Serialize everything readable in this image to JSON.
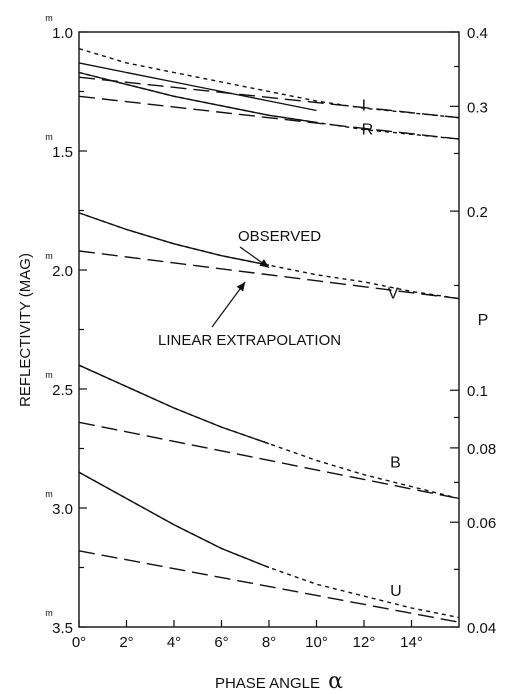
{
  "chart_data": {
    "type": "line",
    "xlabel": "PHASE ANGLE",
    "xlabel_symbol": "α",
    "ylabel": "REFLECTIVITY (MAG)",
    "y2label": "P",
    "xlim": [
      0,
      16
    ],
    "ylim": [
      3.5,
      1.0
    ],
    "x_ticks": [
      {
        "value": 0,
        "label": "0°"
      },
      {
        "value": 2,
        "label": "2°"
      },
      {
        "value": 4,
        "label": "4°"
      },
      {
        "value": 6,
        "label": "6°"
      },
      {
        "value": 8,
        "label": "8°"
      },
      {
        "value": 10,
        "label": "10°"
      },
      {
        "value": 12,
        "label": "12°"
      },
      {
        "value": 14,
        "label": "14°"
      }
    ],
    "y_ticks": [
      {
        "value": 1.0,
        "label": "1.0",
        "sup": "m"
      },
      {
        "value": 1.5,
        "label": "1.5",
        "sup": "m"
      },
      {
        "value": 2.0,
        "label": "2.0",
        "sup": "m"
      },
      {
        "value": 2.5,
        "label": "2.5",
        "sup": "m"
      },
      {
        "value": 3.0,
        "label": "3.0",
        "sup": "m"
      },
      {
        "value": 3.5,
        "label": "3.5",
        "sup": "m"
      }
    ],
    "y_minor_ticks": [
      1.25,
      1.75,
      2.25,
      2.75,
      3.25
    ],
    "y2_ticks": [
      {
        "value": 0.4,
        "label": "0.4"
      },
      {
        "value": 0.3,
        "label": "0.3"
      },
      {
        "value": 0.2,
        "label": "0.2"
      },
      {
        "value": 0.1,
        "label": "0.1"
      },
      {
        "value": 0.08,
        "label": "0.08"
      },
      {
        "value": 0.06,
        "label": "0.06"
      },
      {
        "value": 0.04,
        "label": "0.04"
      }
    ],
    "y2_minor_ticks": [
      0.35,
      0.25,
      0.15,
      0.09,
      0.07,
      0.05
    ],
    "series": [
      {
        "name": "I",
        "style": "observed",
        "x": [
          0,
          2,
          4,
          6,
          8,
          10
        ],
        "y": [
          1.13,
          1.17,
          1.21,
          1.25,
          1.29,
          1.33
        ]
      },
      {
        "name": "I",
        "style": "observed-extrapolated",
        "x": [
          0,
          1,
          2,
          4,
          6,
          8,
          10,
          12,
          14,
          16
        ],
        "y": [
          1.07,
          1.1,
          1.13,
          1.17,
          1.21,
          1.25,
          1.29,
          1.32,
          1.34,
          1.36
        ]
      },
      {
        "name": "I",
        "style": "linear",
        "x": [
          0,
          16
        ],
        "y": [
          1.19,
          1.36
        ]
      },
      {
        "name": "R",
        "style": "observed",
        "x": [
          0,
          2,
          4,
          6,
          8,
          10
        ],
        "y": [
          1.17,
          1.22,
          1.27,
          1.31,
          1.35,
          1.38
        ]
      },
      {
        "name": "R",
        "style": "observed-extrapolated",
        "x": [
          0,
          2,
          4,
          6,
          8,
          10,
          12,
          14,
          16
        ],
        "y": [
          1.17,
          1.22,
          1.27,
          1.31,
          1.35,
          1.38,
          1.41,
          1.43,
          1.45
        ]
      },
      {
        "name": "R",
        "style": "linear",
        "x": [
          0,
          16
        ],
        "y": [
          1.27,
          1.45
        ]
      },
      {
        "name": "V",
        "style": "observed",
        "x": [
          0,
          2,
          4,
          6,
          8
        ],
        "y": [
          1.76,
          1.83,
          1.89,
          1.94,
          1.98
        ]
      },
      {
        "name": "V",
        "style": "observed-extrapolated",
        "x": [
          0,
          2,
          4,
          6,
          8,
          10,
          12,
          14,
          16
        ],
        "y": [
          1.76,
          1.83,
          1.89,
          1.94,
          1.98,
          2.02,
          2.05,
          2.09,
          2.12
        ]
      },
      {
        "name": "V",
        "style": "linear",
        "x": [
          0,
          16
        ],
        "y": [
          1.92,
          2.12
        ]
      },
      {
        "name": "B",
        "style": "observed",
        "x": [
          0,
          2,
          4,
          6,
          8
        ],
        "y": [
          2.4,
          2.49,
          2.58,
          2.66,
          2.73
        ]
      },
      {
        "name": "B",
        "style": "observed-extrapolated",
        "x": [
          0,
          2,
          4,
          6,
          8,
          10,
          12,
          14,
          16
        ],
        "y": [
          2.4,
          2.49,
          2.58,
          2.66,
          2.73,
          2.8,
          2.86,
          2.91,
          2.96
        ]
      },
      {
        "name": "B",
        "style": "linear",
        "x": [
          0,
          16
        ],
        "y": [
          2.64,
          2.96
        ]
      },
      {
        "name": "U",
        "style": "observed",
        "x": [
          0,
          2,
          4,
          6,
          8
        ],
        "y": [
          2.85,
          2.96,
          3.07,
          3.17,
          3.25
        ]
      },
      {
        "name": "U",
        "style": "observed-extrapolated",
        "x": [
          0,
          2,
          4,
          6,
          8,
          10,
          12,
          14,
          16
        ],
        "y": [
          2.85,
          2.96,
          3.07,
          3.17,
          3.25,
          3.32,
          3.37,
          3.42,
          3.46
        ]
      },
      {
        "name": "U",
        "style": "linear",
        "x": [
          0,
          16
        ],
        "y": [
          3.18,
          3.48
        ]
      }
    ],
    "annotations": [
      {
        "text": "OBSERVED",
        "arrow_to": [
          8,
          1.99
        ]
      },
      {
        "text": "LINEAR EXTRAPOLATION",
        "arrow_to": [
          7,
          2.05
        ]
      }
    ],
    "grid": false,
    "legend": "none"
  }
}
